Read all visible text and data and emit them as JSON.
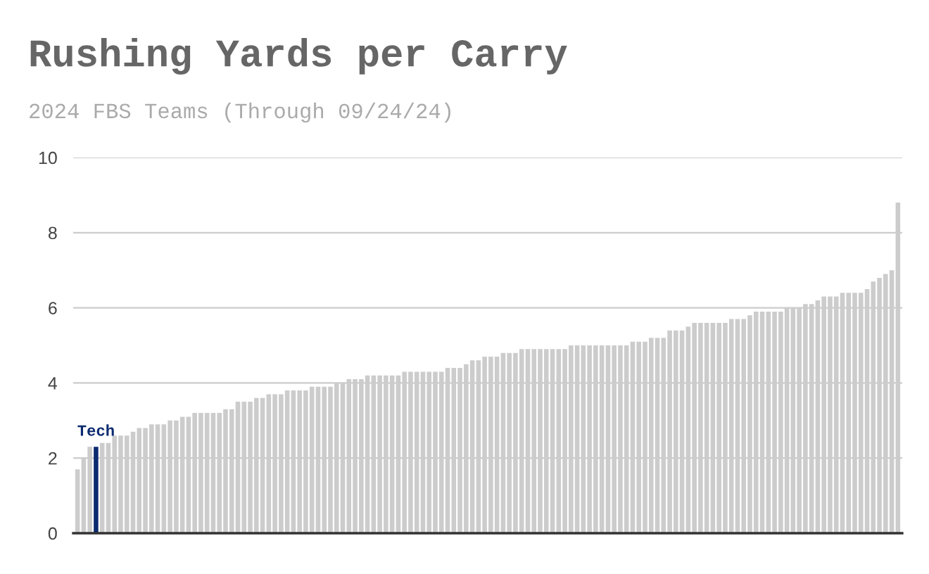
{
  "chart_data": {
    "type": "bar",
    "title": "Rushing Yards per Carry",
    "subtitle": "2024 FBS Teams (Through 09/24/24)",
    "categories": [
      null,
      null,
      null,
      null,
      null,
      null,
      null,
      null,
      null,
      null,
      null,
      null,
      null,
      null,
      null,
      null,
      null,
      null,
      null,
      null,
      null,
      null,
      null,
      null,
      null,
      null,
      null,
      null,
      null,
      null,
      null,
      null,
      null,
      null,
      null,
      null,
      null,
      null,
      null,
      null,
      null,
      null,
      null,
      null,
      null,
      null,
      null,
      null,
      null,
      null,
      null,
      null,
      null,
      null,
      null,
      null,
      null,
      null,
      null,
      null,
      null,
      null,
      null,
      null,
      null,
      null,
      null,
      null,
      null,
      null,
      null,
      null,
      null,
      null,
      null,
      null,
      null,
      null,
      null,
      null,
      null,
      null,
      null,
      null,
      null,
      null,
      null,
      null,
      null,
      null,
      null,
      null,
      null,
      null,
      null,
      null,
      null,
      null,
      null,
      null,
      null,
      null,
      null,
      null,
      null,
      null,
      null,
      null,
      null,
      null,
      null,
      null,
      null,
      null,
      null,
      null,
      null,
      null,
      null,
      null,
      null,
      null,
      null,
      null,
      null,
      null,
      null,
      null,
      null,
      null,
      null,
      null,
      null,
      null
    ],
    "values": [
      1.7,
      2.0,
      2.3,
      2.3,
      2.4,
      2.4,
      2.6,
      2.6,
      2.6,
      2.7,
      2.8,
      2.8,
      2.9,
      2.9,
      2.9,
      3.0,
      3.0,
      3.1,
      3.1,
      3.2,
      3.2,
      3.2,
      3.2,
      3.2,
      3.3,
      3.3,
      3.5,
      3.5,
      3.5,
      3.6,
      3.6,
      3.7,
      3.7,
      3.7,
      3.8,
      3.8,
      3.8,
      3.8,
      3.9,
      3.9,
      3.9,
      3.9,
      4.0,
      4.0,
      4.1,
      4.1,
      4.1,
      4.2,
      4.2,
      4.2,
      4.2,
      4.2,
      4.2,
      4.3,
      4.3,
      4.3,
      4.3,
      4.3,
      4.3,
      4.3,
      4.4,
      4.4,
      4.4,
      4.5,
      4.6,
      4.6,
      4.7,
      4.7,
      4.7,
      4.8,
      4.8,
      4.8,
      4.9,
      4.9,
      4.9,
      4.9,
      4.9,
      4.9,
      4.9,
      4.9,
      5.0,
      5.0,
      5.0,
      5.0,
      5.0,
      5.0,
      5.0,
      5.0,
      5.0,
      5.0,
      5.1,
      5.1,
      5.1,
      5.2,
      5.2,
      5.2,
      5.4,
      5.4,
      5.4,
      5.5,
      5.6,
      5.6,
      5.6,
      5.6,
      5.6,
      5.6,
      5.7,
      5.7,
      5.7,
      5.8,
      5.9,
      5.9,
      5.9,
      5.9,
      5.9,
      6.0,
      6.0,
      6.0,
      6.1,
      6.1,
      6.2,
      6.3,
      6.3,
      6.3,
      6.4,
      6.4,
      6.4,
      6.4,
      6.5,
      6.7,
      6.8,
      6.9,
      7.0,
      8.8
    ],
    "colors": [
      "#cccccc",
      "#cccccc",
      "#cccccc",
      "#0b2a6f",
      "#cccccc",
      "#cccccc",
      "#cccccc",
      "#cccccc",
      "#cccccc",
      "#cccccc",
      "#cccccc",
      "#cccccc",
      "#cccccc",
      "#cccccc",
      "#cccccc",
      "#cccccc",
      "#cccccc",
      "#cccccc",
      "#cccccc",
      "#cccccc",
      "#cccccc",
      "#cccccc",
      "#cccccc",
      "#cccccc",
      "#cccccc",
      "#cccccc",
      "#cccccc",
      "#cccccc",
      "#cccccc",
      "#cccccc",
      "#cccccc",
      "#cccccc",
      "#cccccc",
      "#cccccc",
      "#cccccc",
      "#cccccc",
      "#cccccc",
      "#cccccc",
      "#cccccc",
      "#cccccc",
      "#cccccc",
      "#cccccc",
      "#cccccc",
      "#cccccc",
      "#cccccc",
      "#cccccc",
      "#cccccc",
      "#cccccc",
      "#cccccc",
      "#cccccc",
      "#cccccc",
      "#cccccc",
      "#cccccc",
      "#cccccc",
      "#cccccc",
      "#cccccc",
      "#cccccc",
      "#cccccc",
      "#cccccc",
      "#cccccc",
      "#cccccc",
      "#cccccc",
      "#cccccc",
      "#cccccc",
      "#cccccc",
      "#cccccc",
      "#cccccc",
      "#cccccc",
      "#cccccc",
      "#cccccc",
      "#cccccc",
      "#cccccc",
      "#cccccc",
      "#cccccc",
      "#cccccc",
      "#cccccc",
      "#cccccc",
      "#cccccc",
      "#cccccc",
      "#cccccc",
      "#cccccc",
      "#cccccc",
      "#cccccc",
      "#cccccc",
      "#cccccc",
      "#cccccc",
      "#cccccc",
      "#cccccc",
      "#cccccc",
      "#cccccc",
      "#cccccc",
      "#cccccc",
      "#cccccc",
      "#cccccc",
      "#cccccc",
      "#cccccc",
      "#cccccc",
      "#cccccc",
      "#cccccc",
      "#cccccc",
      "#cccccc",
      "#cccccc",
      "#cccccc",
      "#cccccc",
      "#cccccc",
      "#cccccc",
      "#cccccc",
      "#cccccc",
      "#cccccc",
      "#cccccc",
      "#cccccc",
      "#cccccc",
      "#cccccc",
      "#cccccc",
      "#cccccc",
      "#cccccc",
      "#cccccc",
      "#cccccc",
      "#cccccc",
      "#cccccc",
      "#cccccc",
      "#cccccc",
      "#cccccc",
      "#cccccc",
      "#cccccc",
      "#cccccc",
      "#cccccc",
      "#cccccc",
      "#cccccc",
      "#cccccc",
      "#cccccc",
      "#cccccc",
      "#cccccc",
      "#cccccc"
    ],
    "annotations": [
      {
        "text": "Tech",
        "y": 2.3
      }
    ],
    "ylim": [
      0,
      10
    ],
    "yticks": [
      0,
      2,
      4,
      6,
      8,
      10
    ],
    "grid": "y"
  }
}
